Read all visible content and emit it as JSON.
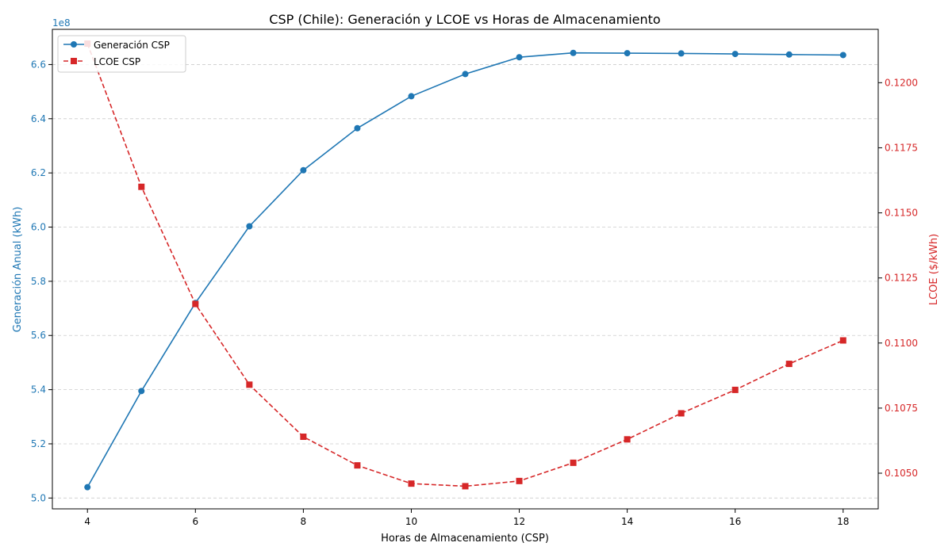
{
  "chart_data": {
    "type": "line",
    "title": "CSP (Chile): Generación y LCOE vs Horas de Almacenamiento",
    "xlabel": "Horas de Almacenamiento (CSP)",
    "ylabel_left": "Generación Anual (kWh)",
    "ylabel_right": "LCOE ($/kWh)",
    "left_offset_text": "1e8",
    "x": [
      4,
      5,
      6,
      7,
      8,
      9,
      10,
      11,
      12,
      13,
      14,
      15,
      16,
      17,
      18
    ],
    "x_ticks": [
      4,
      6,
      8,
      10,
      12,
      14,
      16,
      18
    ],
    "y_left_lim": [
      4.96,
      6.73
    ],
    "y_right_lim": [
      0.10363,
      0.12205
    ],
    "y_left_ticks": [
      "5.0",
      "5.2",
      "5.4",
      "5.6",
      "5.8",
      "6.0",
      "6.2",
      "6.4",
      "6.6"
    ],
    "y_left_tick_values": [
      5.0,
      5.2,
      5.4,
      5.6,
      5.8,
      6.0,
      6.2,
      6.4,
      6.6
    ],
    "y_right_ticks": [
      "0.1050",
      "0.1075",
      "0.1100",
      "0.1125",
      "0.1150",
      "0.1175",
      "0.1200"
    ],
    "y_right_tick_values": [
      0.105,
      0.1075,
      0.11,
      0.1125,
      0.115,
      0.1175,
      0.12
    ],
    "grid": "horizontal dashed",
    "legend_placement": "upper-left",
    "series": [
      {
        "name": "Generación CSP",
        "axis": "left",
        "color": "#1f77b4",
        "marker": "circle",
        "linestyle": "solid",
        "values": [
          5.04,
          5.395,
          5.72,
          6.003,
          6.21,
          6.365,
          6.483,
          6.565,
          6.627,
          6.643,
          6.642,
          6.641,
          6.639,
          6.637,
          6.635
        ]
      },
      {
        "name": "LCOE CSP",
        "axis": "right",
        "color": "#d62728",
        "marker": "square",
        "linestyle": "dashed",
        "values": [
          0.1215,
          0.116,
          0.1115,
          0.1084,
          0.1064,
          0.1053,
          0.1046,
          0.1045,
          0.1047,
          0.1054,
          0.1063,
          0.1073,
          0.1082,
          0.1092,
          0.1101
        ]
      }
    ]
  }
}
